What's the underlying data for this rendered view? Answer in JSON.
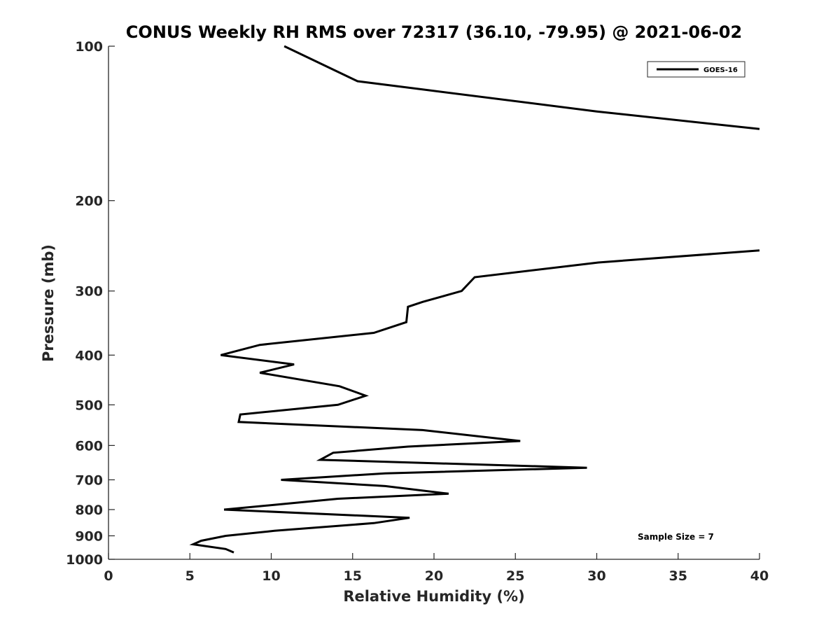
{
  "chart_data": {
    "type": "line",
    "title": "CONUS Weekly RH RMS over 72317 (36.10, -79.95) @ 2021-06-02",
    "xlabel": "Relative Humidity (%)",
    "ylabel": "Pressure (mb)",
    "xlim": [
      0,
      40
    ],
    "ylim": [
      100,
      1000
    ],
    "y_scale": "log",
    "y_reversed": true,
    "x_ticks": [
      "0",
      "5",
      "10",
      "15",
      "20",
      "25",
      "30",
      "35",
      "40"
    ],
    "y_ticks": [
      "100",
      "200",
      "300",
      "400",
      "500",
      "600",
      "700",
      "800",
      "900",
      "1000"
    ],
    "grid": false,
    "legend_position": "top-right",
    "annotation": "Sample Size = 7",
    "series": [
      {
        "name": "GOES-16",
        "color": "#000000",
        "points": [
          [
            10.8,
            100
          ],
          [
            15.3,
            117
          ],
          [
            30.0,
            134
          ],
          [
            40.0,
            145
          ],
          [
            40.0,
            250
          ],
          [
            30.1,
            264
          ],
          [
            22.5,
            282
          ],
          [
            21.7,
            300
          ],
          [
            19.3,
            315
          ],
          [
            18.4,
            322
          ],
          [
            18.3,
            345
          ],
          [
            16.3,
            362
          ],
          [
            9.3,
            382
          ],
          [
            6.9,
            400
          ],
          [
            11.4,
            417
          ],
          [
            9.3,
            433
          ],
          [
            14.2,
            460
          ],
          [
            15.8,
            480
          ],
          [
            14.1,
            500
          ],
          [
            8.1,
            522
          ],
          [
            8.0,
            540
          ],
          [
            19.3,
            560
          ],
          [
            25.3,
            588
          ],
          [
            18.4,
            603
          ],
          [
            13.8,
            620
          ],
          [
            13.0,
            640
          ],
          [
            29.4,
            663
          ],
          [
            17.0,
            680
          ],
          [
            10.6,
            700
          ],
          [
            17.0,
            720
          ],
          [
            20.9,
            745
          ],
          [
            14.1,
            762
          ],
          [
            10.4,
            782
          ],
          [
            7.1,
            800
          ],
          [
            18.5,
            830
          ],
          [
            16.3,
            850
          ],
          [
            10.2,
            880
          ],
          [
            7.2,
            900
          ],
          [
            5.7,
            920
          ],
          [
            5.2,
            935
          ],
          [
            7.2,
            955
          ],
          [
            7.7,
            970
          ]
        ]
      }
    ]
  }
}
